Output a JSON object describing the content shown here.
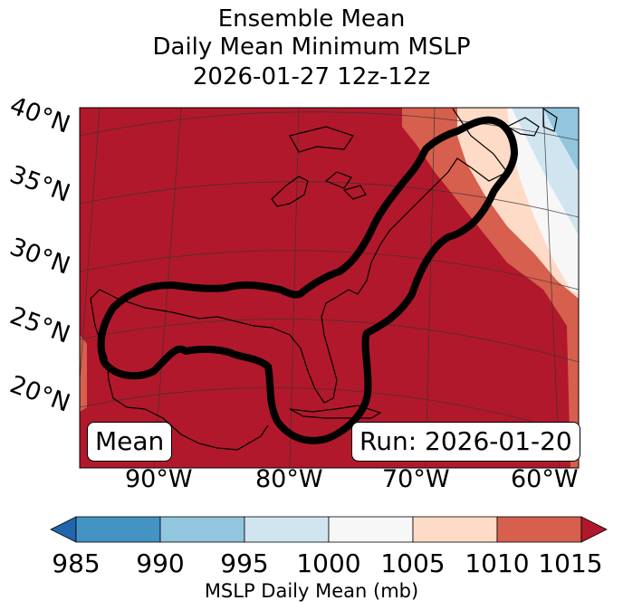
{
  "title": {
    "line1": "Ensemble Mean",
    "line2": "Daily Mean Minimum MSLP",
    "line3": "2026-01-27 12z-12z"
  },
  "map": {
    "lat_labels": [
      "40°N",
      "35°N",
      "30°N",
      "25°N",
      "20°N"
    ],
    "lon_labels": [
      "90°W",
      "80°W",
      "70°W",
      "60°W"
    ],
    "mean_box": "Mean",
    "run_box": "Run: 2026-01-20",
    "contour_description": "ensemble outline"
  },
  "colorbar": {
    "ticks": [
      "985",
      "990",
      "995",
      "1000",
      "1005",
      "1010",
      "1015"
    ],
    "label": "MSLP Daily Mean (mb)",
    "bins": [
      {
        "range": "<985",
        "color": "#2166ac"
      },
      {
        "range": "985-990",
        "color": "#4393c3"
      },
      {
        "range": "990-995",
        "color": "#92c5de"
      },
      {
        "range": "995-1000",
        "color": "#d1e5f0"
      },
      {
        "range": "1000-1005",
        "color": "#f7f7f7"
      },
      {
        "range": "1005-1010",
        "color": "#fddbc7"
      },
      {
        "range": "1010-1015",
        "color": "#d6604d"
      },
      {
        "range": ">1015",
        "color": "#b2182b"
      }
    ]
  }
}
